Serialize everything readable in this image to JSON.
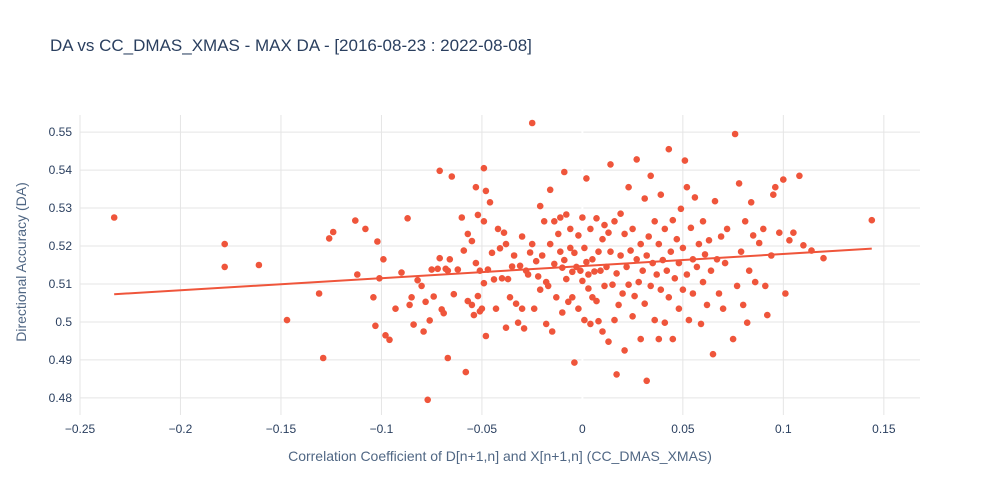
{
  "chart_data": {
    "type": "scatter",
    "title": "DA vs CC_DMAS_XMAS - MAX DA - [2016-08-23 : 2022-08-08]",
    "xlabel": "Correlation Coefficient of D[n+1,n] and X[n+1,n] (CC_DMAS_XMAS)",
    "ylabel": "Directional Accuracy (DA)",
    "xlim": [
      -0.25,
      0.168
    ],
    "ylim": [
      0.4755,
      0.5545
    ],
    "x_ticks": [
      -0.25,
      -0.2,
      -0.15,
      -0.1,
      -0.05,
      0,
      0.05,
      0.1,
      0.15
    ],
    "x_tick_labels": [
      "−0.25",
      "−0.2",
      "−0.15",
      "−0.1",
      "−0.05",
      "0",
      "0.05",
      "0.1",
      "0.15"
    ],
    "y_ticks": [
      0.48,
      0.49,
      0.5,
      0.51,
      0.52,
      0.53,
      0.54,
      0.55
    ],
    "y_tick_labels": [
      "0.48",
      "0.49",
      "0.5",
      "0.51",
      "0.52",
      "0.53",
      "0.54",
      "0.55"
    ],
    "grid": true,
    "point_color": "#ef553b",
    "trend_color": "#ef553b",
    "trendline": {
      "x": [
        -0.233,
        0.144
      ],
      "y": [
        0.5073,
        0.5193
      ]
    },
    "points": [
      [
        -0.233,
        0.5275
      ],
      [
        -0.178,
        0.5205
      ],
      [
        -0.178,
        0.5145
      ],
      [
        -0.161,
        0.515
      ],
      [
        -0.147,
        0.5005
      ],
      [
        -0.131,
        0.5075
      ],
      [
        -0.129,
        0.4905
      ],
      [
        -0.126,
        0.522
      ],
      [
        -0.124,
        0.5237
      ],
      [
        -0.113,
        0.5267
      ],
      [
        -0.112,
        0.5125
      ],
      [
        -0.108,
        0.5245
      ],
      [
        -0.104,
        0.5065
      ],
      [
        -0.103,
        0.499
      ],
      [
        -0.102,
        0.5212
      ],
      [
        -0.101,
        0.5115
      ],
      [
        -0.099,
        0.5165
      ],
      [
        -0.098,
        0.4965
      ],
      [
        -0.096,
        0.4953
      ],
      [
        -0.093,
        0.5035
      ],
      [
        -0.09,
        0.513
      ],
      [
        -0.087,
        0.5273
      ],
      [
        -0.086,
        0.5045
      ],
      [
        -0.085,
        0.5065
      ],
      [
        -0.084,
        0.4993
      ],
      [
        -0.082,
        0.511
      ],
      [
        -0.08,
        0.5095
      ],
      [
        -0.079,
        0.4975
      ],
      [
        -0.078,
        0.5053
      ],
      [
        -0.077,
        0.4795
      ],
      [
        -0.076,
        0.5004
      ],
      [
        -0.075,
        0.5138
      ],
      [
        -0.074,
        0.5067
      ],
      [
        -0.072,
        0.514
      ],
      [
        -0.071,
        0.5398
      ],
      [
        -0.071,
        0.5168
      ],
      [
        -0.07,
        0.5033
      ],
      [
        -0.069,
        0.5023
      ],
      [
        -0.068,
        0.514
      ],
      [
        -0.067,
        0.5135
      ],
      [
        -0.067,
        0.4905
      ],
      [
        -0.066,
        0.5165
      ],
      [
        -0.065,
        0.5383
      ],
      [
        -0.064,
        0.5073
      ],
      [
        -0.062,
        0.5138
      ],
      [
        -0.06,
        0.5275
      ],
      [
        -0.059,
        0.5188
      ],
      [
        -0.058,
        0.4868
      ],
      [
        -0.057,
        0.5055
      ],
      [
        -0.057,
        0.5232
      ],
      [
        -0.055,
        0.5213
      ],
      [
        -0.055,
        0.5045
      ],
      [
        -0.054,
        0.5018
      ],
      [
        -0.053,
        0.5355
      ],
      [
        -0.053,
        0.5155
      ],
      [
        -0.052,
        0.5282
      ],
      [
        -0.052,
        0.5068
      ],
      [
        -0.051,
        0.5028
      ],
      [
        -0.051,
        0.5135
      ],
      [
        -0.05,
        0.5035
      ],
      [
        -0.049,
        0.5405
      ],
      [
        -0.049,
        0.5265
      ],
      [
        -0.049,
        0.5102
      ],
      [
        -0.048,
        0.4963
      ],
      [
        -0.048,
        0.5345
      ],
      [
        -0.047,
        0.5138
      ],
      [
        -0.046,
        0.5315
      ],
      [
        -0.045,
        0.5182
      ],
      [
        -0.044,
        0.5112
      ],
      [
        -0.043,
        0.5035
      ],
      [
        -0.042,
        0.5245
      ],
      [
        -0.041,
        0.5194
      ],
      [
        -0.04,
        0.5115
      ],
      [
        -0.039,
        0.5235
      ],
      [
        -0.038,
        0.5205
      ],
      [
        -0.038,
        0.4985
      ],
      [
        -0.037,
        0.5113
      ],
      [
        -0.036,
        0.5065
      ],
      [
        -0.035,
        0.5146
      ],
      [
        -0.034,
        0.5175
      ],
      [
        -0.033,
        0.5048
      ],
      [
        -0.032,
        0.4998
      ],
      [
        -0.031,
        0.5148
      ],
      [
        -0.03,
        0.5035
      ],
      [
        -0.03,
        0.5225
      ],
      [
        -0.029,
        0.4983
      ],
      [
        -0.028,
        0.5135
      ],
      [
        -0.027,
        0.5125
      ],
      [
        -0.026,
        0.5183
      ],
      [
        -0.025,
        0.5524
      ],
      [
        -0.025,
        0.5205
      ],
      [
        -0.024,
        0.5035
      ],
      [
        -0.023,
        0.516
      ],
      [
        -0.022,
        0.512
      ],
      [
        -0.021,
        0.5085
      ],
      [
        -0.021,
        0.5305
      ],
      [
        -0.02,
        0.5175
      ],
      [
        -0.019,
        0.5265
      ],
      [
        -0.018,
        0.5105
      ],
      [
        -0.018,
        0.4995
      ],
      [
        -0.017,
        0.5095
      ],
      [
        -0.016,
        0.5205
      ],
      [
        -0.016,
        0.5348
      ],
      [
        -0.015,
        0.4975
      ],
      [
        -0.014,
        0.5265
      ],
      [
        -0.014,
        0.5153
      ],
      [
        -0.013,
        0.5065
      ],
      [
        -0.012,
        0.5232
      ],
      [
        -0.011,
        0.5185
      ],
      [
        -0.011,
        0.5275
      ],
      [
        -0.01,
        0.5143
      ],
      [
        -0.01,
        0.5025
      ],
      [
        -0.009,
        0.5395
      ],
      [
        -0.009,
        0.5163
      ],
      [
        -0.008,
        0.5113
      ],
      [
        -0.008,
        0.5283
      ],
      [
        -0.007,
        0.5053
      ],
      [
        -0.006,
        0.5195
      ],
      [
        -0.006,
        0.5245
      ],
      [
        -0.005,
        0.5132
      ],
      [
        -0.005,
        0.5065
      ],
      [
        -0.004,
        0.4893
      ],
      [
        -0.004,
        0.5182
      ],
      [
        -0.003,
        0.5145
      ],
      [
        -0.002,
        0.5228
      ],
      [
        -0.002,
        0.5035
      ],
      [
        -0.001,
        0.5135
      ],
      [
        0.0,
        0.5108
      ],
      [
        0.0,
        0.5275
      ],
      [
        0.001,
        0.5195
      ],
      [
        0.001,
        0.5005
      ],
      [
        0.002,
        0.5158
      ],
      [
        0.002,
        0.5378
      ],
      [
        0.003,
        0.5125
      ],
      [
        0.003,
        0.5088
      ],
      [
        0.004,
        0.4995
      ],
      [
        0.004,
        0.5245
      ],
      [
        0.005,
        0.5165
      ],
      [
        0.005,
        0.5065
      ],
      [
        0.006,
        0.5133
      ],
      [
        0.007,
        0.5055
      ],
      [
        0.007,
        0.5273
      ],
      [
        0.008,
        0.5002
      ],
      [
        0.008,
        0.5185
      ],
      [
        0.009,
        0.5135
      ],
      [
        0.01,
        0.5218
      ],
      [
        0.01,
        0.4975
      ],
      [
        0.011,
        0.5095
      ],
      [
        0.011,
        0.5255
      ],
      [
        0.012,
        0.5145
      ],
      [
        0.013,
        0.4948
      ],
      [
        0.013,
        0.5235
      ],
      [
        0.014,
        0.5185
      ],
      [
        0.014,
        0.5415
      ],
      [
        0.015,
        0.5098
      ],
      [
        0.016,
        0.5005
      ],
      [
        0.016,
        0.5265
      ],
      [
        0.017,
        0.5128
      ],
      [
        0.017,
        0.4862
      ],
      [
        0.018,
        0.5045
      ],
      [
        0.019,
        0.5175
      ],
      [
        0.019,
        0.5285
      ],
      [
        0.02,
        0.5075
      ],
      [
        0.021,
        0.5232
      ],
      [
        0.021,
        0.4925
      ],
      [
        0.022,
        0.5145
      ],
      [
        0.023,
        0.5355
      ],
      [
        0.023,
        0.5098
      ],
      [
        0.024,
        0.5188
      ],
      [
        0.025,
        0.5015
      ],
      [
        0.025,
        0.5245
      ],
      [
        0.026,
        0.5068
      ],
      [
        0.027,
        0.5428
      ],
      [
        0.027,
        0.5165
      ],
      [
        0.028,
        0.5105
      ],
      [
        0.029,
        0.5205
      ],
      [
        0.029,
        0.4955
      ],
      [
        0.03,
        0.5135
      ],
      [
        0.031,
        0.5325
      ],
      [
        0.031,
        0.5048
      ],
      [
        0.032,
        0.5175
      ],
      [
        0.032,
        0.4845
      ],
      [
        0.033,
        0.5225
      ],
      [
        0.034,
        0.5095
      ],
      [
        0.034,
        0.5385
      ],
      [
        0.035,
        0.5155
      ],
      [
        0.036,
        0.5005
      ],
      [
        0.036,
        0.5265
      ],
      [
        0.037,
        0.5125
      ],
      [
        0.038,
        0.5205
      ],
      [
        0.038,
        0.4955
      ],
      [
        0.039,
        0.5085
      ],
      [
        0.039,
        0.5335
      ],
      [
        0.04,
        0.5163
      ],
      [
        0.041,
        0.4998
      ],
      [
        0.041,
        0.5245
      ],
      [
        0.042,
        0.5135
      ],
      [
        0.043,
        0.5455
      ],
      [
        0.043,
        0.5065
      ],
      [
        0.044,
        0.5185
      ],
      [
        0.045,
        0.5268
      ],
      [
        0.045,
        0.4955
      ],
      [
        0.046,
        0.5115
      ],
      [
        0.047,
        0.5218
      ],
      [
        0.048,
        0.5035
      ],
      [
        0.048,
        0.5155
      ],
      [
        0.049,
        0.5298
      ],
      [
        0.05,
        0.5085
      ],
      [
        0.05,
        0.5195
      ],
      [
        0.051,
        0.5425
      ],
      [
        0.052,
        0.5355
      ],
      [
        0.052,
        0.5125
      ],
      [
        0.053,
        0.5005
      ],
      [
        0.054,
        0.5248
      ],
      [
        0.055,
        0.5165
      ],
      [
        0.055,
        0.5075
      ],
      [
        0.056,
        0.5328
      ],
      [
        0.057,
        0.5145
      ],
      [
        0.058,
        0.5205
      ],
      [
        0.059,
        0.4995
      ],
      [
        0.06,
        0.5265
      ],
      [
        0.06,
        0.5105
      ],
      [
        0.061,
        0.5178
      ],
      [
        0.062,
        0.5045
      ],
      [
        0.063,
        0.5215
      ],
      [
        0.064,
        0.5135
      ],
      [
        0.065,
        0.4915
      ],
      [
        0.066,
        0.5318
      ],
      [
        0.067,
        0.5165
      ],
      [
        0.068,
        0.5075
      ],
      [
        0.069,
        0.5225
      ],
      [
        0.07,
        0.5035
      ],
      [
        0.071,
        0.5155
      ],
      [
        0.072,
        0.5245
      ],
      [
        0.075,
        0.4955
      ],
      [
        0.076,
        0.5495
      ],
      [
        0.077,
        0.5095
      ],
      [
        0.078,
        0.5365
      ],
      [
        0.079,
        0.5185
      ],
      [
        0.08,
        0.5045
      ],
      [
        0.081,
        0.5265
      ],
      [
        0.082,
        0.4998
      ],
      [
        0.083,
        0.5135
      ],
      [
        0.084,
        0.5315
      ],
      [
        0.085,
        0.5228
      ],
      [
        0.086,
        0.5105
      ],
      [
        0.088,
        0.5208
      ],
      [
        0.09,
        0.5245
      ],
      [
        0.091,
        0.5095
      ],
      [
        0.092,
        0.5018
      ],
      [
        0.094,
        0.5175
      ],
      [
        0.095,
        0.5335
      ],
      [
        0.096,
        0.5355
      ],
      [
        0.098,
        0.5235
      ],
      [
        0.1,
        0.5375
      ],
      [
        0.101,
        0.5075
      ],
      [
        0.103,
        0.5215
      ],
      [
        0.105,
        0.5235
      ],
      [
        0.108,
        0.5385
      ],
      [
        0.11,
        0.5202
      ],
      [
        0.114,
        0.5188
      ],
      [
        0.12,
        0.5168
      ],
      [
        0.144,
        0.5268
      ]
    ]
  }
}
